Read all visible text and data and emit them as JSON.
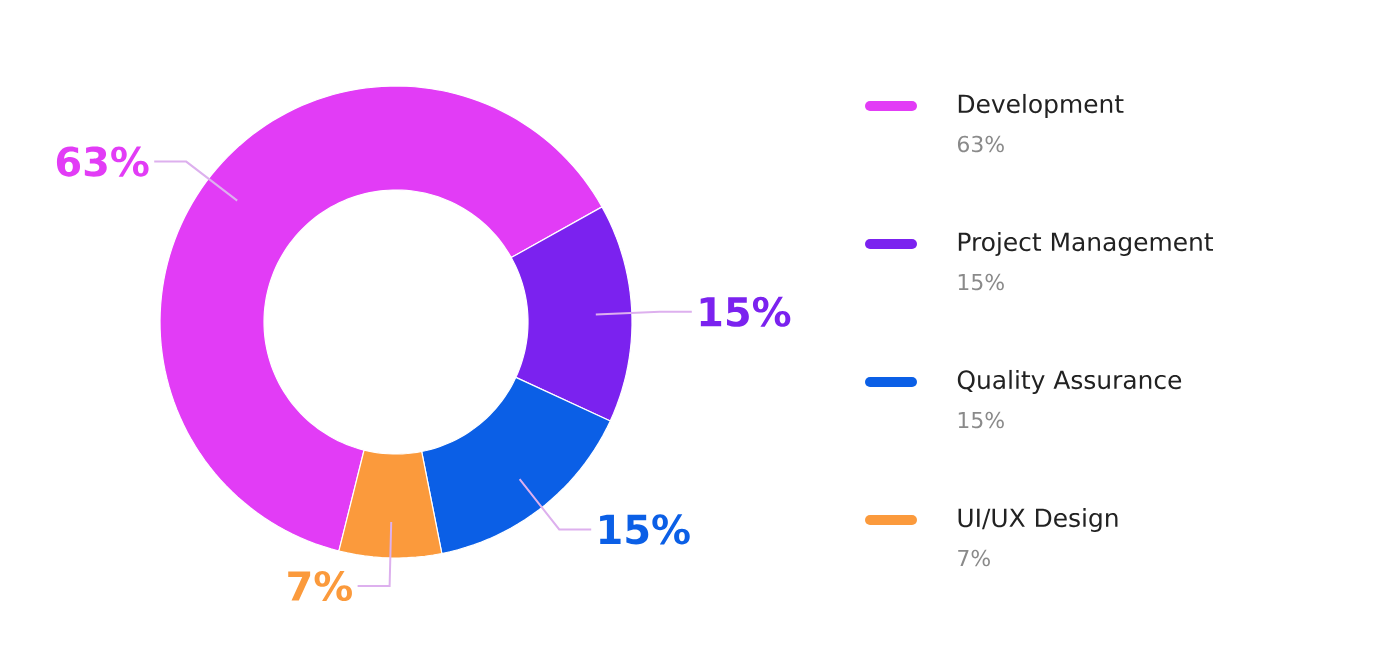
{
  "chart_data": {
    "type": "donut",
    "categories": [
      "Development",
      "Project Management",
      "Quality Assurance",
      "UI/UX Design"
    ],
    "values": [
      63,
      15,
      15,
      7
    ],
    "colors": [
      "#e23cf6",
      "#7b22ef",
      "#0b5fe6",
      "#fb9a3c"
    ],
    "value_labels": [
      "63%",
      "15%",
      "15%",
      "7%"
    ],
    "legend": "right"
  }
}
